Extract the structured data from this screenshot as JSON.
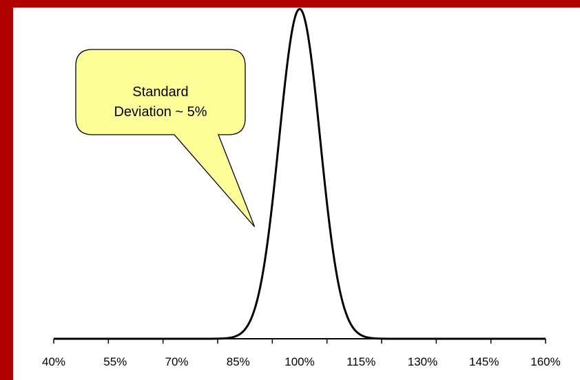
{
  "frame": {
    "color": "#b00000"
  },
  "chart_data": {
    "type": "line",
    "title": "",
    "xlabel": "",
    "ylabel": "",
    "x_ticks": [
      "40%",
      "55%",
      "70%",
      "85%",
      "100%",
      "115%",
      "130%",
      "145%",
      "160%"
    ],
    "x_tick_values": [
      40,
      55,
      70,
      85,
      100,
      115,
      130,
      145,
      160
    ],
    "xlim": [
      40,
      160
    ],
    "series": [
      {
        "mean": 100,
        "std_dev": 5,
        "shape": "normal-distribution",
        "color": "#000000"
      }
    ],
    "grid": false,
    "legend": "none",
    "annotations": [
      {
        "lines": [
          "Standard",
          "Deviation ~ 5%"
        ],
        "fill": "#ffff99",
        "stroke": "#000000",
        "points_to_x": 89
      }
    ]
  }
}
